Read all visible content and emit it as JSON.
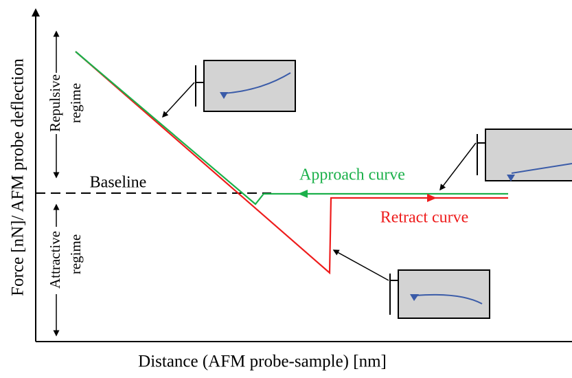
{
  "axes": {
    "y_label": "Force [nN]/ AFM probe deflection",
    "x_label": "Distance (AFM probe-sample) [nm]"
  },
  "labels": {
    "baseline": "Baseline",
    "approach": "Approach curve",
    "retract": "Retract curve",
    "repulsive": [
      "Repulsive",
      "regime"
    ],
    "attractive": [
      "Attractive",
      "regime"
    ]
  }
}
